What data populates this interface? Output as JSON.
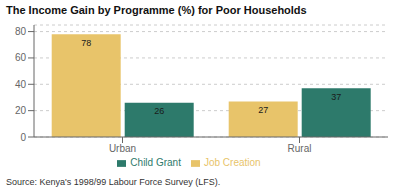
{
  "chart_data": {
    "type": "bar",
    "title": "The Income Gain by Programme (%) for Poor Households",
    "categories": [
      "Urban",
      "Rural"
    ],
    "series": [
      {
        "name": "Job Creation",
        "color": "#e8c46a",
        "values": [
          78,
          27
        ]
      },
      {
        "name": "Child Grant",
        "color": "#2d7a6b",
        "values": [
          26,
          37
        ]
      }
    ],
    "ylim": [
      0,
      85
    ],
    "yticks": [
      0,
      20,
      40,
      60,
      80
    ],
    "grid": true,
    "data_labels": true,
    "annotations": [
      "Source: Kenya's 1998/99 Labour Force Survey (LFS)."
    ]
  }
}
